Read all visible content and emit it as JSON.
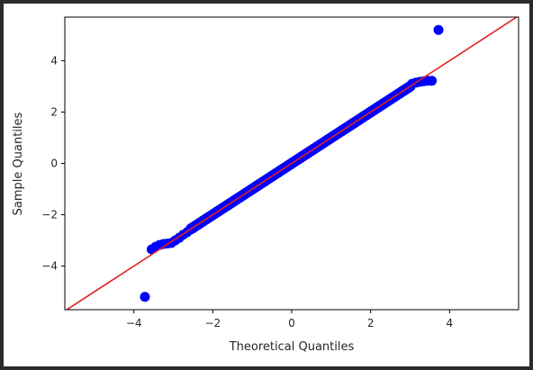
{
  "chart_data": {
    "type": "scatter",
    "title": "",
    "xlabel": "Theoretical Quantiles",
    "ylabel": "Sample Quantiles",
    "xlim": [
      -5.75,
      5.75
    ],
    "ylim": [
      -5.7,
      5.7
    ],
    "xticks": [
      -4,
      -2,
      0,
      2,
      4
    ],
    "yticks": [
      -4,
      -2,
      0,
      2,
      4
    ],
    "xtick_labels": [
      "−4",
      "−2",
      "0",
      "2",
      "4"
    ],
    "ytick_labels": [
      "−4",
      "−2",
      "0",
      "2",
      "4"
    ],
    "grid": false,
    "marker_color": "#0000ff",
    "reference_line_color": "#e32020",
    "reference_line": {
      "slope": 1,
      "intercept": 0
    },
    "series": [
      {
        "points": [
          [
            -3.72,
            -5.2
          ],
          [
            -3.55,
            -3.35
          ],
          [
            -3.45,
            -3.25
          ],
          [
            -3.35,
            -3.18
          ],
          [
            -3.25,
            -3.14
          ],
          [
            -3.15,
            -3.12
          ],
          [
            -3.05,
            -3.1
          ],
          [
            -2.95,
            -3.0
          ],
          [
            -2.85,
            -2.9
          ],
          [
            -2.75,
            -2.78
          ],
          [
            -2.65,
            -2.68
          ],
          [
            -2.5,
            -2.52
          ],
          [
            3.05,
            3.1
          ],
          [
            3.15,
            3.15
          ],
          [
            3.25,
            3.18
          ],
          [
            3.35,
            3.2
          ],
          [
            3.45,
            3.22
          ],
          [
            3.55,
            3.22
          ],
          [
            3.72,
            5.2
          ]
        ],
        "dense_band": {
          "x_from": -2.55,
          "x_to": 3.0,
          "offset": 0.0
        }
      }
    ]
  }
}
